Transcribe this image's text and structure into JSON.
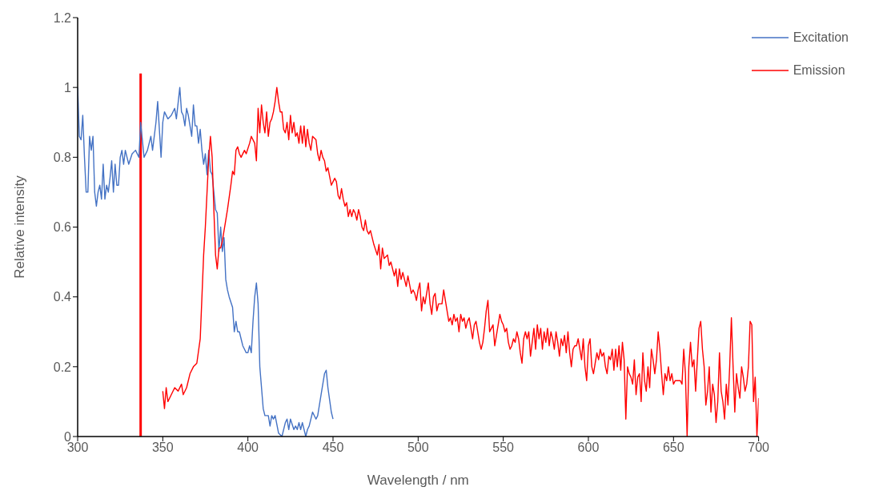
{
  "chart_data": {
    "type": "line",
    "xlabel": "Wavelength / nm",
    "ylabel": "Relative intensity",
    "xlim": [
      300,
      700
    ],
    "xticks": [
      300,
      350,
      400,
      450,
      500,
      550,
      600,
      650,
      700
    ],
    "ylim": [
      0,
      1.2
    ],
    "yticks": [
      0,
      0.2,
      0.4,
      0.6,
      0.8,
      1,
      1.2
    ],
    "grid": false,
    "legend": "top right",
    "series": [
      {
        "name": "Excitation",
        "color": "#4472c4",
        "x": [
          300,
          301,
          302,
          303,
          304,
          305,
          306,
          307,
          308,
          309,
          310,
          311,
          312,
          313,
          314,
          315,
          316,
          317,
          318,
          319,
          320,
          321,
          322,
          323,
          324,
          325,
          326,
          327,
          328,
          329,
          330,
          332,
          334,
          336,
          337,
          339,
          341,
          343,
          344,
          346,
          347,
          349,
          350,
          351,
          353,
          355,
          357,
          358,
          360,
          361,
          362,
          363,
          364,
          365,
          367,
          368,
          369,
          370,
          371,
          372,
          373,
          374,
          375,
          376,
          377,
          378,
          379,
          380,
          381,
          382,
          383,
          384,
          385,
          386,
          387,
          388,
          389,
          391,
          392,
          393,
          394,
          395,
          396,
          397,
          398,
          399,
          400,
          401,
          402,
          403,
          404,
          405,
          406,
          407,
          408,
          409,
          410,
          412,
          413,
          414,
          415,
          416,
          418,
          420,
          422,
          423,
          424,
          425,
          427,
          428,
          429,
          430,
          431,
          432,
          434,
          435,
          436,
          438,
          440,
          441,
          443,
          445,
          446,
          447,
          449,
          450
        ],
        "values": [
          1.0,
          0.86,
          0.85,
          0.92,
          0.8,
          0.7,
          0.7,
          0.86,
          0.82,
          0.86,
          0.7,
          0.66,
          0.7,
          0.72,
          0.68,
          0.78,
          0.68,
          0.72,
          0.7,
          0.74,
          0.79,
          0.7,
          0.78,
          0.72,
          0.72,
          0.8,
          0.82,
          0.78,
          0.82,
          0.8,
          0.78,
          0.81,
          0.82,
          0.8,
          0.9,
          0.8,
          0.82,
          0.86,
          0.82,
          0.9,
          0.96,
          0.8,
          0.9,
          0.93,
          0.91,
          0.92,
          0.94,
          0.91,
          1.0,
          0.93,
          0.92,
          0.89,
          0.94,
          0.92,
          0.86,
          0.95,
          0.89,
          0.89,
          0.84,
          0.88,
          0.82,
          0.78,
          0.81,
          0.75,
          0.82,
          0.76,
          0.75,
          0.7,
          0.65,
          0.64,
          0.53,
          0.6,
          0.53,
          0.57,
          0.45,
          0.42,
          0.4,
          0.37,
          0.3,
          0.33,
          0.3,
          0.3,
          0.28,
          0.26,
          0.25,
          0.24,
          0.24,
          0.26,
          0.24,
          0.33,
          0.4,
          0.44,
          0.38,
          0.2,
          0.14,
          0.08,
          0.06,
          0.06,
          0.03,
          0.06,
          0.05,
          0.06,
          0.01,
          0,
          0.04,
          0.05,
          0.02,
          0.05,
          0.02,
          0.03,
          0.02,
          0.04,
          0.02,
          0.04,
          0,
          0.02,
          0.03,
          0.07,
          0.05,
          0.06,
          0.12,
          0.18,
          0.19,
          0.14,
          0.07,
          0.05
        ]
      },
      {
        "name": "Emission",
        "color": "#ff0000",
        "x": [
          350,
          351,
          352,
          353,
          355,
          357,
          359,
          361,
          362,
          364,
          366,
          368,
          370,
          372,
          373,
          374,
          375,
          376,
          377,
          378,
          379,
          380,
          381,
          382,
          383,
          384,
          385,
          387,
          388,
          390,
          391,
          392,
          393,
          394,
          395,
          396,
          398,
          399,
          401,
          402,
          404,
          405,
          406,
          407,
          408,
          409,
          410,
          411,
          412,
          413,
          414,
          415,
          416,
          417,
          418,
          419,
          420,
          421,
          422,
          423,
          424,
          425,
          426,
          427,
          428,
          429,
          430,
          431,
          432,
          433,
          434,
          435,
          436,
          437,
          438,
          440,
          441,
          442,
          443,
          444,
          445,
          446,
          447,
          449,
          450,
          451,
          452,
          453,
          454,
          455,
          456,
          457,
          458,
          459,
          460,
          461,
          462,
          463,
          464,
          465,
          466,
          467,
          468,
          469,
          470,
          471,
          472,
          474,
          476,
          477,
          478,
          479,
          480,
          482,
          483,
          484,
          486,
          487,
          488,
          489,
          490,
          491,
          492,
          493,
          494,
          496,
          497,
          498,
          499,
          500,
          501,
          502,
          503,
          504,
          506,
          507,
          508,
          509,
          510,
          511,
          512,
          514,
          515,
          516,
          518,
          519,
          520,
          521,
          522,
          523,
          524,
          525,
          526,
          527,
          528,
          529,
          530,
          531,
          532,
          533,
          534,
          535,
          536,
          537,
          538,
          539,
          540,
          541,
          542,
          543,
          544,
          545,
          546,
          547,
          548,
          549,
          550,
          551,
          552,
          553,
          554,
          555,
          556,
          557,
          558,
          559,
          560,
          561,
          562,
          563,
          564,
          565,
          566,
          567,
          568,
          569,
          570,
          571,
          572,
          573,
          574,
          575,
          576,
          577,
          578,
          579,
          580,
          581,
          582,
          583,
          584,
          585,
          586,
          587,
          588,
          589,
          590,
          591,
          592,
          593,
          594,
          595,
          596,
          597,
          598,
          599,
          600,
          601,
          602,
          603,
          604,
          605,
          606,
          607,
          608,
          609,
          610,
          611,
          612,
          613,
          614,
          615,
          616,
          617,
          618,
          619,
          620,
          621,
          622,
          623,
          624,
          625,
          626,
          627,
          628,
          629,
          630,
          631,
          632,
          633,
          634,
          635,
          636,
          637,
          638,
          639,
          640,
          641,
          642,
          643,
          644,
          645,
          646,
          647,
          648,
          649,
          650,
          651,
          652,
          654,
          655,
          656,
          657,
          658,
          659,
          660,
          661,
          662,
          663,
          664,
          665,
          666,
          667,
          668,
          669,
          670,
          671,
          672,
          673,
          674,
          675,
          676,
          677,
          678,
          679,
          680,
          681,
          682,
          683,
          684,
          685,
          686,
          687,
          688,
          689,
          690,
          691,
          692,
          693,
          694,
          695,
          696,
          697,
          698,
          699,
          700
        ],
        "values": [
          0.13,
          0.08,
          0.14,
          0.1,
          0.12,
          0.14,
          0.13,
          0.15,
          0.12,
          0.14,
          0.18,
          0.2,
          0.21,
          0.28,
          0.4,
          0.52,
          0.6,
          0.7,
          0.8,
          0.86,
          0.8,
          0.65,
          0.52,
          0.48,
          0.54,
          0.54,
          0.56,
          0.62,
          0.65,
          0.72,
          0.76,
          0.75,
          0.82,
          0.83,
          0.81,
          0.8,
          0.82,
          0.81,
          0.84,
          0.86,
          0.84,
          0.79,
          0.94,
          0.87,
          0.95,
          0.9,
          0.87,
          0.93,
          0.86,
          0.9,
          0.91,
          0.93,
          0.96,
          1.0,
          0.96,
          0.93,
          0.93,
          0.88,
          0.87,
          0.9,
          0.85,
          0.92,
          0.87,
          0.9,
          0.86,
          0.87,
          0.84,
          0.89,
          0.84,
          0.89,
          0.83,
          0.88,
          0.84,
          0.82,
          0.86,
          0.85,
          0.81,
          0.79,
          0.82,
          0.8,
          0.79,
          0.76,
          0.77,
          0.72,
          0.73,
          0.74,
          0.73,
          0.69,
          0.68,
          0.71,
          0.68,
          0.66,
          0.67,
          0.63,
          0.65,
          0.63,
          0.65,
          0.64,
          0.62,
          0.65,
          0.63,
          0.6,
          0.59,
          0.62,
          0.59,
          0.58,
          0.59,
          0.55,
          0.52,
          0.55,
          0.48,
          0.54,
          0.51,
          0.52,
          0.49,
          0.5,
          0.46,
          0.48,
          0.43,
          0.48,
          0.45,
          0.47,
          0.45,
          0.43,
          0.46,
          0.41,
          0.42,
          0.41,
          0.39,
          0.42,
          0.44,
          0.36,
          0.4,
          0.38,
          0.44,
          0.38,
          0.35,
          0.4,
          0.41,
          0.36,
          0.38,
          0.38,
          0.42,
          0.39,
          0.33,
          0.34,
          0.32,
          0.35,
          0.33,
          0.34,
          0.3,
          0.35,
          0.33,
          0.34,
          0.31,
          0.33,
          0.34,
          0.31,
          0.28,
          0.32,
          0.33,
          0.3,
          0.27,
          0.25,
          0.27,
          0.31,
          0.36,
          0.39,
          0.3,
          0.31,
          0.32,
          0.26,
          0.29,
          0.32,
          0.35,
          0.33,
          0.32,
          0.3,
          0.31,
          0.27,
          0.25,
          0.26,
          0.28,
          0.27,
          0.3,
          0.28,
          0.24,
          0.21,
          0.28,
          0.3,
          0.28,
          0.3,
          0.23,
          0.27,
          0.31,
          0.25,
          0.32,
          0.28,
          0.31,
          0.25,
          0.3,
          0.27,
          0.31,
          0.26,
          0.3,
          0.28,
          0.25,
          0.3,
          0.27,
          0.23,
          0.28,
          0.26,
          0.29,
          0.24,
          0.3,
          0.24,
          0.2,
          0.25,
          0.26,
          0.26,
          0.28,
          0.25,
          0.22,
          0.28,
          0.2,
          0.16,
          0.26,
          0.28,
          0.2,
          0.18,
          0.21,
          0.24,
          0.22,
          0.25,
          0.23,
          0.24,
          0.2,
          0.18,
          0.23,
          0.22,
          0.25,
          0.19,
          0.25,
          0.2,
          0.26,
          0.19,
          0.27,
          0.22,
          0.05,
          0.2,
          0.18,
          0.17,
          0.15,
          0.22,
          0.12,
          0.17,
          0.18,
          0.1,
          0.24,
          0.16,
          0.13,
          0.2,
          0.14,
          0.25,
          0.22,
          0.18,
          0.22,
          0.3,
          0.25,
          0.18,
          0.12,
          0.18,
          0.16,
          0.2,
          0.16,
          0.18,
          0.15,
          0.16,
          0.16,
          0.16,
          0.15,
          0.25,
          0.18,
          0,
          0.2,
          0.27,
          0.2,
          0.22,
          0.13,
          0.22,
          0.31,
          0.33,
          0.25,
          0.2,
          0.09,
          0.13,
          0.2,
          0.07,
          0.15,
          0.12,
          0.04,
          0.1,
          0.24,
          0.13,
          0.1,
          0.05,
          0.15,
          0.09,
          0.2,
          0.34,
          0.2,
          0.07,
          0.18,
          0.14,
          0.11,
          0.2,
          0.17,
          0.13,
          0.15,
          0.2,
          0.33,
          0.32,
          0.1,
          0.17,
          0,
          0.11
        ]
      },
      {
        "color": "#ff0000",
        "x": [
          337,
          337
        ],
        "values": [
          0,
          1.04
        ]
      }
    ]
  }
}
